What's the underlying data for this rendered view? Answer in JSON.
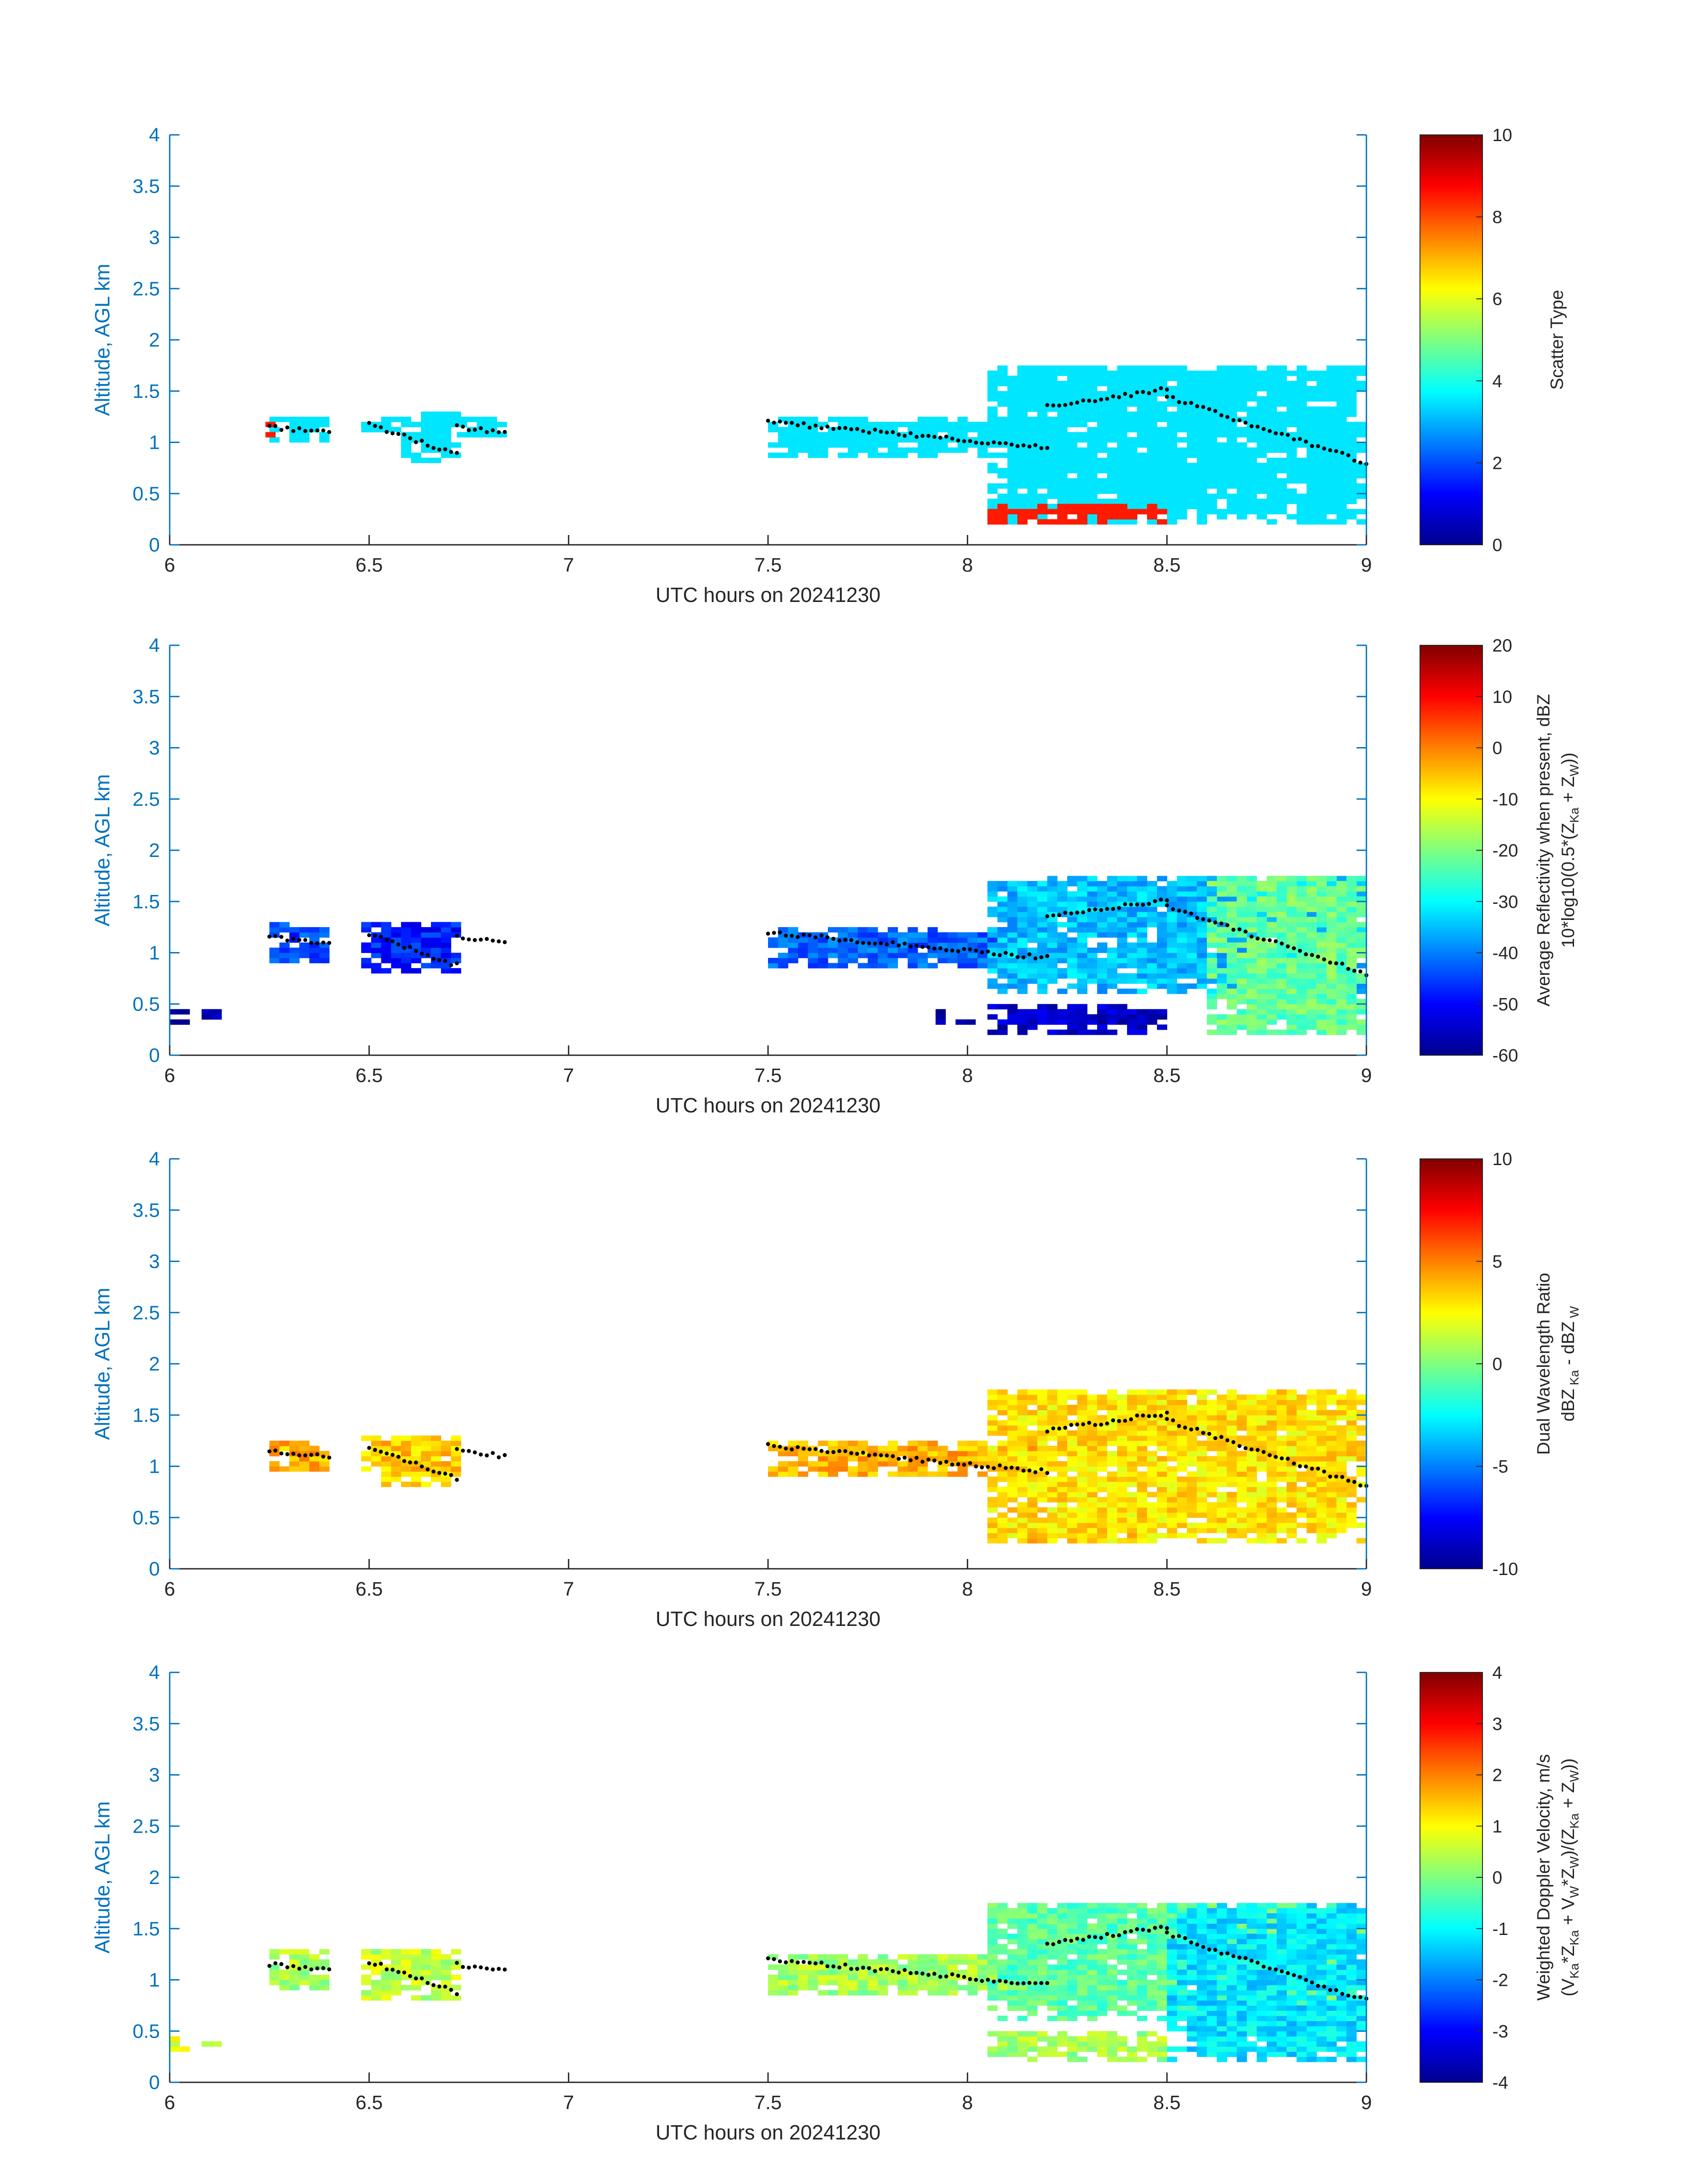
{
  "chart_data": [
    {
      "type": "heatmap",
      "xlabel": "UTC hours on 20241230",
      "ylabel": "Altitude, AGL km",
      "xlim": [
        6,
        9
      ],
      "ylim": [
        0,
        4
      ],
      "xticks": [
        "6",
        "6.5",
        "7",
        "7.5",
        "8",
        "8.5",
        "9"
      ],
      "yticks": [
        "0",
        "0.5",
        "1",
        "1.5",
        "2",
        "2.5",
        "3",
        "3.5",
        "4"
      ],
      "colorbar": {
        "label": "Scatter Type",
        "label2": "",
        "min": 0,
        "max": 10,
        "ticks": [
          "0",
          "2",
          "4",
          "6",
          "8",
          "10"
        ]
      },
      "regions": [
        {
          "x": [
            6.25,
            6.4
          ],
          "y": [
            1.0,
            1.25
          ],
          "value": 3.5
        },
        {
          "x": [
            6.48,
            6.6
          ],
          "y": [
            1.1,
            1.25
          ],
          "value": 3.5
        },
        {
          "x": [
            6.58,
            6.72
          ],
          "y": [
            0.8,
            1.3
          ],
          "value": 3.5
        },
        {
          "x": [
            6.72,
            6.84
          ],
          "y": [
            1.05,
            1.25
          ],
          "value": 3.5
        },
        {
          "x": [
            7.5,
            8.2
          ],
          "y": [
            0.85,
            1.25
          ],
          "value": 3.5
        },
        {
          "x": [
            8.05,
            9.0
          ],
          "y": [
            0.2,
            1.75
          ],
          "value": 3.5
        },
        {
          "x": [
            6.24,
            6.26
          ],
          "y": [
            1.05,
            1.2
          ],
          "value": 8.5
        },
        {
          "x": [
            8.05,
            8.5
          ],
          "y": [
            0.2,
            0.4
          ],
          "value": 8.5
        }
      ],
      "cloud_top_dots": [
        {
          "x": [
            6.25,
            6.4
          ],
          "y": [
            1.15,
            1.1
          ]
        },
        {
          "x": [
            6.5,
            6.72
          ],
          "y": [
            1.18,
            0.88
          ]
        },
        {
          "x": [
            6.72,
            6.84
          ],
          "y": [
            1.15,
            1.1
          ]
        },
        {
          "x": [
            7.5,
            8.2
          ],
          "y": [
            1.2,
            0.95
          ]
        },
        {
          "x": [
            8.2,
            8.5
          ],
          "y": [
            1.35,
            1.52
          ]
        },
        {
          "x": [
            8.5,
            9.0
          ],
          "y": [
            1.45,
            0.8
          ]
        }
      ]
    },
    {
      "type": "heatmap",
      "xlabel": "UTC hours on 20241230",
      "ylabel": "Altitude, AGL km",
      "xlim": [
        6,
        9
      ],
      "ylim": [
        0,
        4
      ],
      "xticks": [
        "6",
        "6.5",
        "7",
        "7.5",
        "8",
        "8.5",
        "9"
      ],
      "yticks": [
        "0",
        "0.5",
        "1",
        "1.5",
        "2",
        "2.5",
        "3",
        "3.5",
        "4"
      ],
      "colorbar": {
        "label": "Average Reflectivity when present, dBZ",
        "label2": "10*log10(0.5*(Z_Ka + Z_W))",
        "min": -60,
        "max": 20,
        "ticks": [
          "-60",
          "-50",
          "-40",
          "-30",
          "-20",
          "-10",
          "0",
          "10",
          "20"
        ]
      },
      "regions": [
        {
          "x": [
            6.0,
            6.03
          ],
          "y": [
            0.3,
            0.45
          ],
          "value": -58
        },
        {
          "x": [
            6.08,
            6.12
          ],
          "y": [
            0.35,
            0.45
          ],
          "value": -58
        },
        {
          "x": [
            6.25,
            6.4
          ],
          "y": [
            0.9,
            1.3
          ],
          "value": -45
        },
        {
          "x": [
            6.48,
            6.72
          ],
          "y": [
            0.8,
            1.3
          ],
          "value": -48
        },
        {
          "x": [
            7.5,
            8.2
          ],
          "y": [
            0.85,
            1.25
          ],
          "value": -42
        },
        {
          "x": [
            7.92,
            8.0
          ],
          "y": [
            0.3,
            0.45
          ],
          "value": -58
        },
        {
          "x": [
            8.05,
            8.5
          ],
          "y": [
            0.2,
            0.5
          ],
          "value": -55
        },
        {
          "x": [
            8.05,
            9.0
          ],
          "y": [
            0.6,
            1.75
          ],
          "value": -35
        },
        {
          "x": [
            8.6,
            9.0
          ],
          "y": [
            0.2,
            1.75
          ],
          "value": -22
        }
      ],
      "cloud_top_dots": [
        {
          "x": [
            6.25,
            6.4
          ],
          "y": [
            1.15,
            1.1
          ]
        },
        {
          "x": [
            6.5,
            6.72
          ],
          "y": [
            1.18,
            0.88
          ]
        },
        {
          "x": [
            6.72,
            6.84
          ],
          "y": [
            1.15,
            1.1
          ]
        },
        {
          "x": [
            7.5,
            8.2
          ],
          "y": [
            1.2,
            0.95
          ]
        },
        {
          "x": [
            8.2,
            8.5
          ],
          "y": [
            1.35,
            1.52
          ]
        },
        {
          "x": [
            8.5,
            9.0
          ],
          "y": [
            1.45,
            0.8
          ]
        }
      ]
    },
    {
      "type": "heatmap",
      "xlabel": "UTC hours on 20241230",
      "ylabel": "Altitude, AGL km",
      "xlim": [
        6,
        9
      ],
      "ylim": [
        0,
        4
      ],
      "xticks": [
        "6",
        "6.5",
        "7",
        "7.5",
        "8",
        "8.5",
        "9"
      ],
      "yticks": [
        "0",
        "0.5",
        "1",
        "1.5",
        "2",
        "2.5",
        "3",
        "3.5",
        "4"
      ],
      "colorbar": {
        "label": "Dual Wavelength Ratio",
        "label2": "dBZ_Ka - dBZ_W",
        "min": -10,
        "max": 10,
        "ticks": [
          "-10",
          "-5",
          "0",
          "5",
          "10"
        ]
      },
      "regions": [
        {
          "x": [
            6.25,
            6.4
          ],
          "y": [
            0.95,
            1.25
          ],
          "value": 4
        },
        {
          "x": [
            6.48,
            6.72
          ],
          "y": [
            0.8,
            1.3
          ],
          "value": 3.5
        },
        {
          "x": [
            7.5,
            8.2
          ],
          "y": [
            0.9,
            1.25
          ],
          "value": 4
        },
        {
          "x": [
            8.05,
            8.5
          ],
          "y": [
            0.25,
            0.45
          ],
          "value": 3.5
        },
        {
          "x": [
            8.05,
            9.0
          ],
          "y": [
            0.25,
            1.75
          ],
          "value": 3
        }
      ],
      "cloud_top_dots": [
        {
          "x": [
            6.25,
            6.4
          ],
          "y": [
            1.15,
            1.1
          ]
        },
        {
          "x": [
            6.5,
            6.72
          ],
          "y": [
            1.18,
            0.88
          ]
        },
        {
          "x": [
            6.72,
            6.84
          ],
          "y": [
            1.15,
            1.1
          ]
        },
        {
          "x": [
            7.5,
            8.2
          ],
          "y": [
            1.2,
            0.95
          ]
        },
        {
          "x": [
            8.2,
            8.5
          ],
          "y": [
            1.35,
            1.52
          ]
        },
        {
          "x": [
            8.5,
            9.0
          ],
          "y": [
            1.45,
            0.8
          ]
        }
      ]
    },
    {
      "type": "heatmap",
      "xlabel": "UTC hours on 20241230",
      "ylabel": "Altitude, AGL km",
      "xlim": [
        6,
        9
      ],
      "ylim": [
        0,
        4
      ],
      "xticks": [
        "6",
        "6.5",
        "7",
        "7.5",
        "8",
        "8.5",
        "9"
      ],
      "yticks": [
        "0",
        "0.5",
        "1",
        "1.5",
        "2",
        "2.5",
        "3",
        "3.5",
        "4"
      ],
      "colorbar": {
        "label": "Weighted Doppler Velocity, m/s",
        "label2": "(V_Ka*Z_Ka + V_W*Z_W)/(Z_Ka + Z_W)",
        "min": -4,
        "max": 4,
        "ticks": [
          "-4",
          "-3",
          "-2",
          "-1",
          "0",
          "1",
          "2",
          "3",
          "4"
        ]
      },
      "regions": [
        {
          "x": [
            6.0,
            6.03
          ],
          "y": [
            0.3,
            0.45
          ],
          "value": 0.8
        },
        {
          "x": [
            6.08,
            6.12
          ],
          "y": [
            0.35,
            0.45
          ],
          "value": 0.8
        },
        {
          "x": [
            6.25,
            6.4
          ],
          "y": [
            0.9,
            1.3
          ],
          "value": 0.3
        },
        {
          "x": [
            6.48,
            6.72
          ],
          "y": [
            0.8,
            1.3
          ],
          "value": 0.5
        },
        {
          "x": [
            7.5,
            8.2
          ],
          "y": [
            0.85,
            1.25
          ],
          "value": 0.3
        },
        {
          "x": [
            8.05,
            8.5
          ],
          "y": [
            0.2,
            0.5
          ],
          "value": 0.3
        },
        {
          "x": [
            8.05,
            9.0
          ],
          "y": [
            0.6,
            1.75
          ],
          "value": -0.3
        },
        {
          "x": [
            8.5,
            9.0
          ],
          "y": [
            0.2,
            1.75
          ],
          "value": -1.2
        }
      ],
      "cloud_top_dots": [
        {
          "x": [
            6.25,
            6.4
          ],
          "y": [
            1.15,
            1.1
          ]
        },
        {
          "x": [
            6.5,
            6.72
          ],
          "y": [
            1.18,
            0.88
          ]
        },
        {
          "x": [
            6.72,
            6.84
          ],
          "y": [
            1.15,
            1.1
          ]
        },
        {
          "x": [
            7.5,
            8.2
          ],
          "y": [
            1.2,
            0.95
          ]
        },
        {
          "x": [
            8.2,
            8.5
          ],
          "y": [
            1.35,
            1.52
          ]
        },
        {
          "x": [
            8.5,
            9.0
          ],
          "y": [
            1.45,
            0.8
          ]
        }
      ]
    }
  ],
  "colors": {
    "axis_blue": "#0072bd",
    "text_dark": "#262626",
    "dot": "#000000",
    "jet": [
      "#00008f",
      "#0000ff",
      "#0080ff",
      "#00ffff",
      "#80ff80",
      "#ffff00",
      "#ff8000",
      "#ff0000",
      "#800000"
    ]
  }
}
